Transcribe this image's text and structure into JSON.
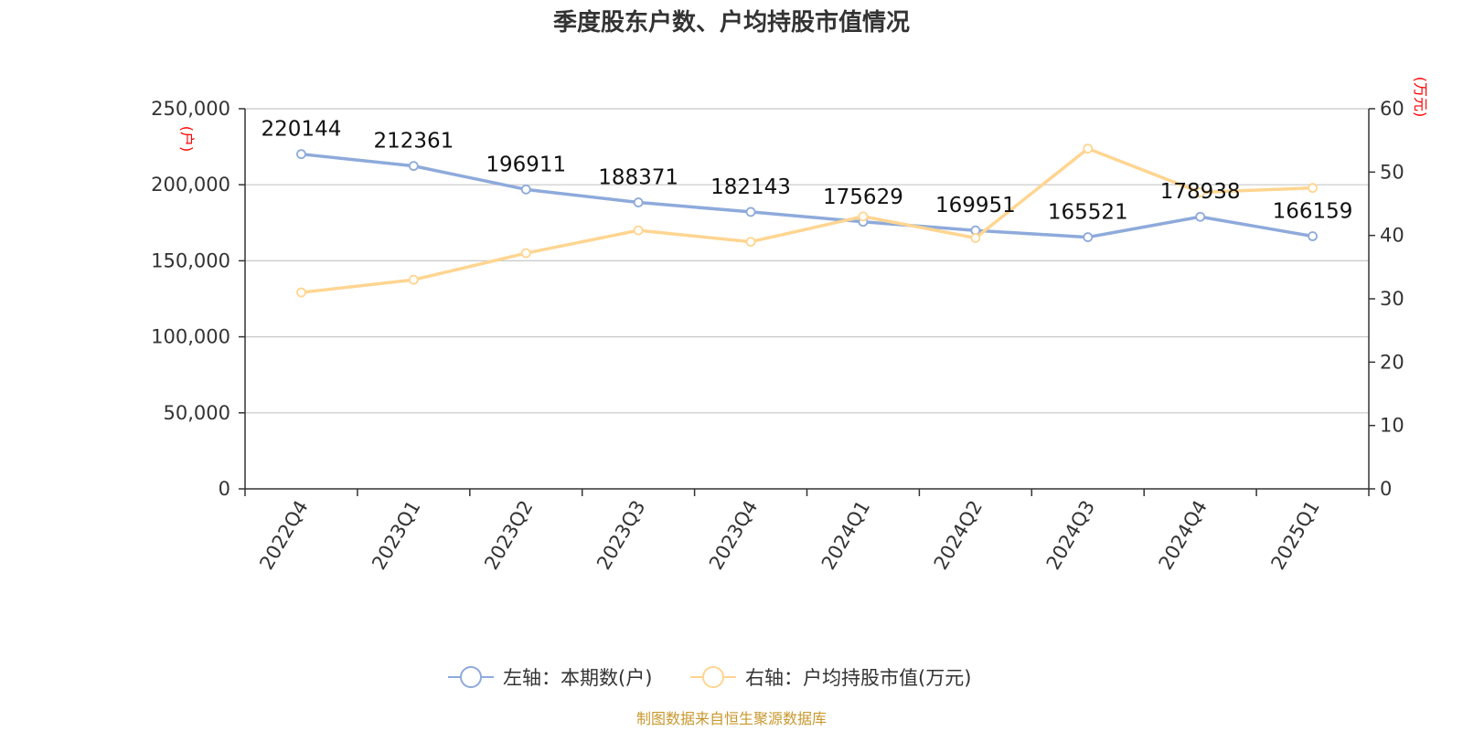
{
  "chart_data": {
    "type": "line",
    "title": "季度股东户数、户均持股市值情况",
    "categories": [
      "2022Q4",
      "2023Q1",
      "2023Q2",
      "2023Q3",
      "2023Q4",
      "2024Q1",
      "2024Q2",
      "2024Q3",
      "2024Q4",
      "2025Q1"
    ],
    "left_axis": {
      "unit": "(户)",
      "ylim": [
        0,
        250000
      ],
      "ticks": [
        "0",
        "50,000",
        "100,000",
        "150,000",
        "200,000",
        "250,000"
      ],
      "tick_values": [
        0,
        50000,
        100000,
        150000,
        200000,
        250000
      ]
    },
    "right_axis": {
      "unit": "(万元)",
      "ylim": [
        0,
        60
      ],
      "ticks": [
        "0",
        "10",
        "20",
        "30",
        "40",
        "50",
        "60"
      ],
      "tick_values": [
        0,
        10,
        20,
        30,
        40,
        50,
        60
      ]
    },
    "grid": true,
    "series": [
      {
        "name": "左轴：本期数(户)",
        "axis": "left",
        "color": "#8eaadb",
        "values": [
          220144,
          212361,
          196911,
          188371,
          182143,
          175629,
          169951,
          165521,
          178938,
          166159
        ],
        "labels": [
          "220144",
          "212361",
          "196911",
          "188371",
          "182143",
          "175629",
          "169951",
          "165521",
          "178938",
          "166159"
        ]
      },
      {
        "name": "右轴：户均持股市值(万元)",
        "axis": "right",
        "color": "#ffd591",
        "values": [
          31.0,
          33.0,
          37.2,
          40.8,
          39.0,
          43.0,
          39.6,
          53.7,
          46.8,
          47.5
        ]
      }
    ],
    "legend_position": "bottom-center",
    "source": "制图数据来自恒生聚源数据库"
  }
}
